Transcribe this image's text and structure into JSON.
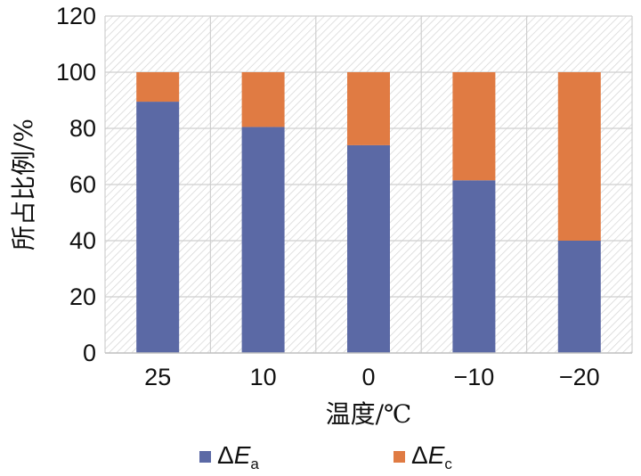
{
  "chart_data": {
    "type": "bar",
    "stacked": true,
    "categories": [
      "25",
      "10",
      "0",
      "−10",
      "−20"
    ],
    "series": [
      {
        "name": "ΔE",
        "name_sub": "a",
        "color": "#5b69a5",
        "values": [
          89.5,
          80.5,
          74,
          61.5,
          40
        ]
      },
      {
        "name": "ΔE",
        "name_sub": "c",
        "color": "#e07b43",
        "values": [
          10.5,
          19.5,
          26,
          38.5,
          60
        ]
      }
    ],
    "title": "",
    "xlabel": "温度/℃",
    "ylabel": "所占比例/%",
    "ylim": [
      0,
      120
    ],
    "yticks": [
      "0",
      "20",
      "40",
      "60",
      "80",
      "100",
      "120"
    ],
    "grid": true,
    "legend_position": "bottom"
  }
}
